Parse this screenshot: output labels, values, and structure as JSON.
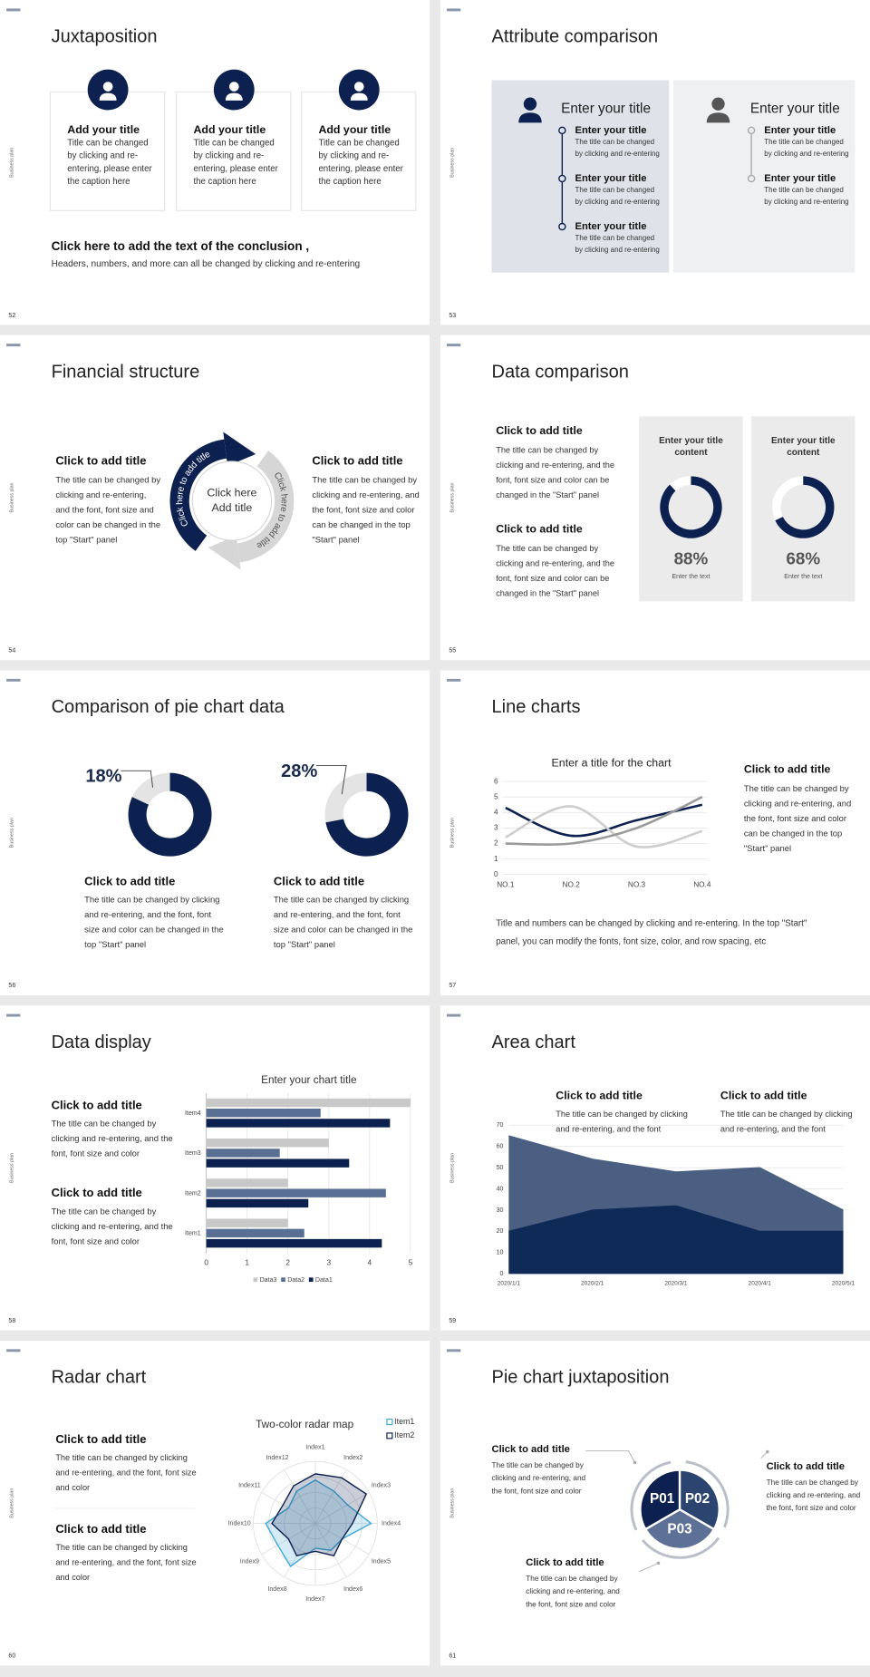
{
  "side_label": "Business plan",
  "slides": [
    {
      "number": "52",
      "title": "Juxtaposition",
      "cards": [
        {
          "title": "Add your title",
          "lines": [
            "Title can be changed",
            "by clicking and re-",
            "entering, please enter",
            "the caption here"
          ]
        },
        {
          "title": "Add your title",
          "lines": [
            "Title can be changed",
            "by clicking and re-",
            "entering, please enter",
            "the caption here"
          ]
        },
        {
          "title": "Add your title",
          "lines": [
            "Title can be changed",
            "by clicking and re-",
            "entering, please enter",
            "the caption here"
          ]
        }
      ],
      "conclusion": {
        "title": "Click here to add the text of the conclusion ,",
        "text": "Headers, numbers, and more can all be changed by clicking and re-entering"
      }
    },
    {
      "number": "53",
      "title": "Attribute comparison",
      "panels": [
        {
          "heading": "Enter your title",
          "items": [
            {
              "title": "Enter your title",
              "lines": [
                "The title can be changed",
                "by clicking and re-entering"
              ]
            },
            {
              "title": "Enter your title",
              "lines": [
                "The title can be changed",
                "by clicking and re-entering"
              ]
            },
            {
              "title": "Enter your title",
              "lines": [
                "The title can be changed",
                "by clicking and re-entering"
              ]
            }
          ]
        },
        {
          "heading": "Enter your title",
          "items": [
            {
              "title": "Enter your title",
              "lines": [
                "The title can be changed",
                "by clicking and re-entering"
              ]
            },
            {
              "title": "Enter your title",
              "lines": [
                "The title can be changed",
                "by clicking and re-entering"
              ]
            }
          ]
        }
      ]
    },
    {
      "number": "54",
      "title": "Financial structure",
      "blocks": [
        {
          "title": "Click to add title",
          "lines": [
            "The title can be changed by",
            "clicking and re-entering,",
            "and the font, font size and",
            "color can be changed in the",
            "top \"Start\" panel"
          ]
        },
        {
          "title": "Click to add title",
          "lines": [
            "The title can be changed by",
            "clicking and re-entering, and",
            "the font, font size and color",
            "can be changed in the top",
            "\"Start\" panel"
          ]
        }
      ],
      "cycle": {
        "center": [
          "Click here",
          "Add title"
        ],
        "arcs": [
          "Click here to add title",
          "Click here to add title"
        ]
      }
    },
    {
      "number": "55",
      "title": "Data comparison",
      "blocks": [
        {
          "title": "Click to add title",
          "lines": [
            "The title can be changed by",
            "clicking and re-entering, and the",
            "font, font size and color can be",
            "changed in the \"Start\" panel"
          ]
        },
        {
          "title": "Click to add title",
          "lines": [
            "The title can be changed by",
            "clicking and re-entering, and the",
            "font, font size and color can be",
            "changed in the \"Start\" panel"
          ]
        }
      ],
      "gauges": [
        {
          "title": [
            "Enter your title",
            "content"
          ],
          "value": 88,
          "value_label": "88%",
          "caption": "Enter the text",
          "color": "#0d2150"
        },
        {
          "title": [
            "Enter your title",
            "content"
          ],
          "value": 68,
          "value_label": "68%",
          "caption": "Enter the text",
          "color": "#0d2150"
        }
      ]
    },
    {
      "number": "56",
      "title": "Comparison of pie chart data",
      "donuts": [
        {
          "value": 18,
          "value_label": "18%",
          "color": "#e4e4e4",
          "rest_color": "#0d2150"
        },
        {
          "value": 28,
          "value_label": "28%",
          "color": "#e4e4e4",
          "rest_color": "#0d2150"
        }
      ],
      "blocks": [
        {
          "title": "Click to add title",
          "lines": [
            "The title can be changed by clicking",
            "and re-entering, and the font, font",
            "size and color can be changed in the",
            "top \"Start\" panel"
          ]
        },
        {
          "title": "Click to add title",
          "lines": [
            "The title can be changed by clicking",
            "and re-entering, and the font, font",
            "size and color can be changed in the",
            "top \"Start\" panel"
          ]
        }
      ]
    },
    {
      "number": "57",
      "title": "Line charts",
      "chart": {
        "type": "line",
        "title": "Enter a title for the chart",
        "categories": [
          "NO.1",
          "NO.2",
          "NO.3",
          "NO.4"
        ],
        "ylim": [
          0,
          6
        ],
        "yticks": [
          0,
          1,
          2,
          3,
          4,
          5,
          6
        ],
        "grid": true,
        "series": [
          {
            "color": "#0d2150",
            "values": [
              4.3,
              2.5,
              3.5,
              4.5
            ]
          },
          {
            "color": "#cdcdcd",
            "values": [
              2.4,
              4.4,
              1.8,
              2.8
            ]
          },
          {
            "color": "#9a9a9a",
            "values": [
              2,
              2,
              3,
              5
            ]
          }
        ]
      },
      "blocks": [
        {
          "title": "Click to add title",
          "lines": [
            "The title can be changed by",
            "clicking and re-entering, and",
            "the font, font size and color",
            "can be changed in the top",
            "\"Start\" panel"
          ]
        }
      ],
      "note": [
        "Title and numbers can be changed by clicking and re-entering. In the top \"Start\"",
        "panel, you can modify the fonts, font size, color, and row spacing, etc"
      ]
    },
    {
      "number": "58",
      "title": "Data display",
      "blocks": [
        {
          "title": "Click to add title",
          "lines": [
            "The title can be changed by",
            "clicking and re-entering, and the",
            "font, font size and color"
          ]
        },
        {
          "title": "Click to add title",
          "lines": [
            "The title can be changed by",
            "clicking and re-entering, and the",
            "font, font size and color"
          ]
        }
      ],
      "chart": {
        "type": "barh",
        "title": "Enter your chart title",
        "categories": [
          "Item1",
          "Item2",
          "Item3",
          "Item4"
        ],
        "xlim": [
          0,
          5
        ],
        "xticks": [
          0,
          1,
          2,
          3,
          4,
          5
        ],
        "grid": true,
        "series": [
          {
            "name": "Data1",
            "color": "#0d2150",
            "values": [
              4.3,
              2.5,
              3.5,
              4.5
            ]
          },
          {
            "name": "Data2",
            "color": "#5a6f94",
            "values": [
              2.4,
              4.4,
              1.8,
              2.8
            ]
          },
          {
            "name": "Data3",
            "color": "#c8c8c8",
            "values": [
              2,
              2,
              3,
              5
            ]
          }
        ]
      }
    },
    {
      "number": "59",
      "title": "Area chart",
      "blocks": [
        {
          "title": "Click to add title",
          "lines": [
            "The title can be changed by clicking",
            "and re-entering, and the font"
          ]
        },
        {
          "title": "Click to add title",
          "lines": [
            "The title can be changed by clicking",
            "and re-entering, and the font"
          ]
        }
      ],
      "chart": {
        "type": "area",
        "categories": [
          "2020/1/1",
          "2020/2/1",
          "2020/3/1",
          "2020/4/1",
          "2020/5/1"
        ],
        "ylim": [
          0,
          70
        ],
        "yticks": [
          0,
          10,
          20,
          30,
          40,
          50,
          60,
          70
        ],
        "grid": true,
        "series": [
          {
            "color": "#4a5f82",
            "values": [
              65,
              54,
              48,
              50,
              30
            ]
          },
          {
            "color": "#0f2a56",
            "values": [
              20,
              30,
              32,
              20,
              20
            ]
          }
        ]
      }
    },
    {
      "number": "60",
      "title": "Radar chart",
      "blocks": [
        {
          "title": "Click to add title",
          "lines": [
            "The title can be changed by clicking",
            "and re-entering, and the font, font size",
            "and color"
          ]
        },
        {
          "title": "Click to add title",
          "lines": [
            "The title can be changed by clicking",
            "and re-entering, and the font, font size",
            "and color"
          ]
        }
      ],
      "chart": {
        "type": "radar",
        "title": "Two-color radar map",
        "categories": [
          "Index1",
          "Index2",
          "Index3",
          "Index4",
          "Index5",
          "Index6",
          "Index7",
          "Index8",
          "Index9",
          "Index10",
          "Index11",
          "Index12"
        ],
        "rlim": [
          0,
          10
        ],
        "series": [
          {
            "name": "Item1",
            "color": "#3fa9d6",
            "values": [
              7,
              6,
              6,
              9,
              5,
              5,
              4,
              8,
              7,
              8,
              5,
              6
            ]
          },
          {
            "name": "Item2",
            "color": "#0d2150",
            "values": [
              8,
              8.5,
              9.5,
              6,
              5,
              6,
              4.5,
              6,
              5,
              7,
              6,
              7
            ]
          }
        ]
      }
    },
    {
      "number": "61",
      "title": "Pie chart juxtaposition",
      "segments": [
        {
          "label": "P01",
          "color": "#0d2150"
        },
        {
          "label": "P02",
          "color": "#2b4470"
        },
        {
          "label": "P03",
          "color": "#5d7197"
        }
      ],
      "blocks": [
        {
          "title": "Click to add title",
          "lines": [
            "The title can be changed by",
            "clicking and re-entering, and",
            "the font, font size and color"
          ]
        },
        {
          "title": "Click to add title",
          "lines": [
            "The title can be changed by",
            "clicking and re-entering, and",
            "the font, font size and color"
          ]
        },
        {
          "title": "Click to add title",
          "lines": [
            "The title can be changed by",
            "clicking and re-entering, and",
            "the font, font size and color"
          ]
        }
      ]
    }
  ]
}
